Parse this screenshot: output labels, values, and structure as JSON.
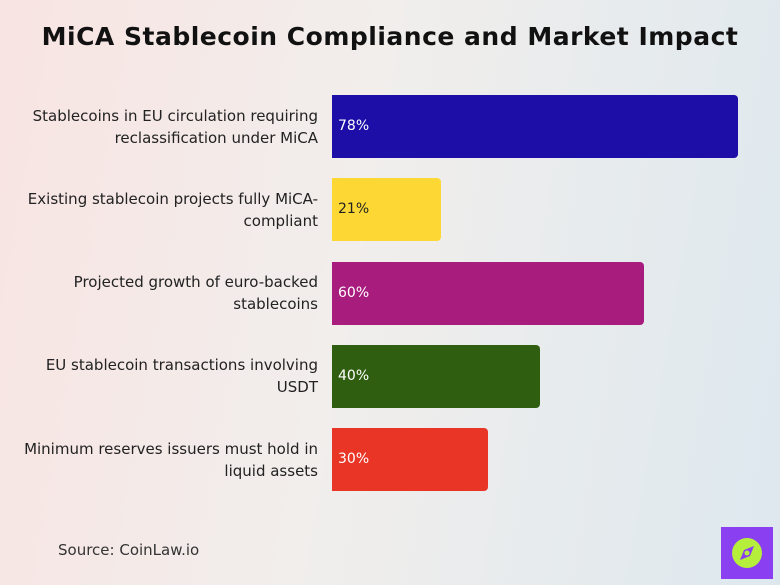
{
  "chart_data": {
    "type": "bar",
    "orientation": "horizontal",
    "title": "MiCA Stablecoin Compliance and Market Impact",
    "categories": [
      "Stablecoins in EU circulation requiring reclassification under MiCA",
      "Existing stablecoin projects fully MiCA-compliant",
      "Projected growth of euro-backed stablecoins",
      "EU stablecoin transactions involving USDT",
      "Minimum reserves issuers must hold in liquid assets"
    ],
    "values": [
      78,
      21,
      60,
      40,
      30
    ],
    "value_labels": [
      "78%",
      "21%",
      "60%",
      "40%",
      "30%"
    ],
    "colors": [
      "#1c0ea6",
      "#fdd835",
      "#a81c7e",
      "#2f5e10",
      "#e83526"
    ],
    "source": "Source: CoinLaw.io"
  }
}
